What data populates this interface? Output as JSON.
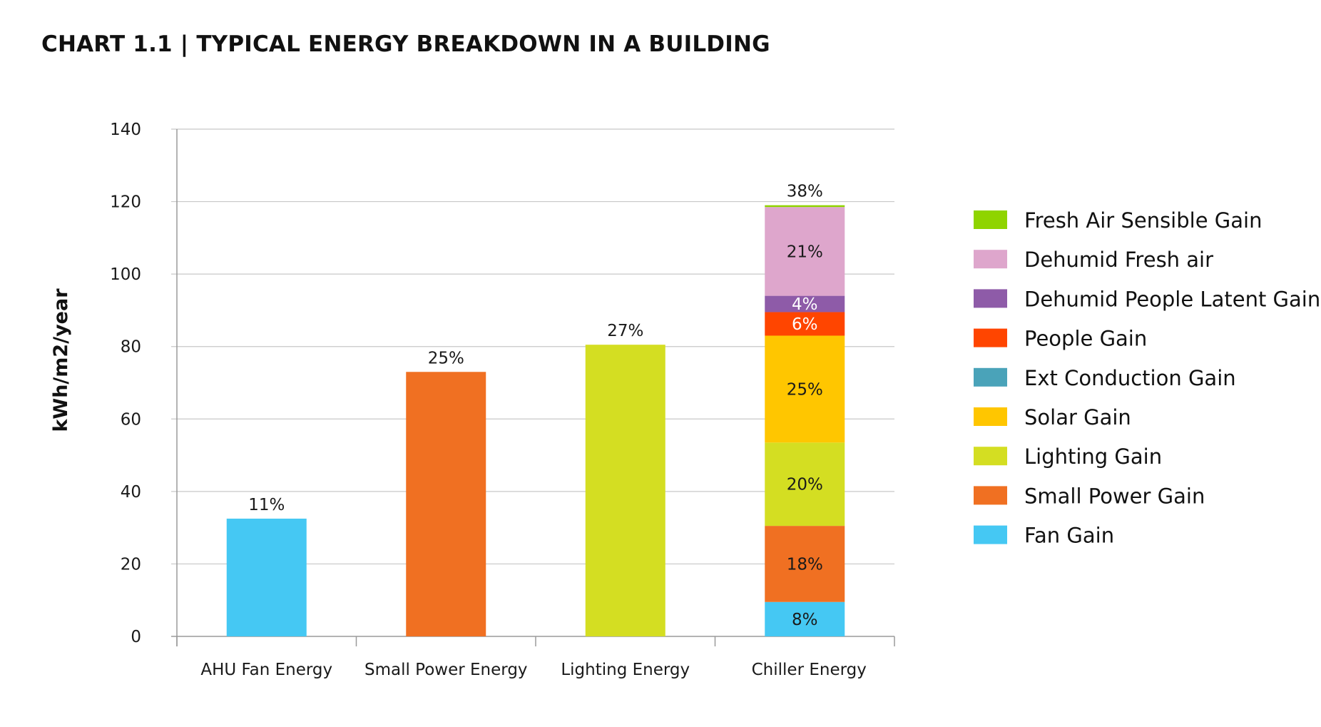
{
  "page": {
    "title": "CHART 1.1  |  TYPICAL ENERGY BREAKDOWN IN A BUILDING"
  },
  "chart_data": {
    "type": "bar",
    "stacked": true,
    "title": "CHART 1.1  |  TYPICAL ENERGY BREAKDOWN IN A BUILDING",
    "xlabel": "",
    "ylabel": "kWh/m2/year",
    "ylim": [
      0,
      140
    ],
    "yticks": [
      0,
      20,
      40,
      60,
      80,
      100,
      120,
      140
    ],
    "grid": true,
    "legend_position": "right",
    "categories": [
      "AHU Fan Energy",
      "Small Power Energy",
      "Lighting Energy",
      "Chiller Energy"
    ],
    "bars": [
      {
        "category": "AHU Fan Energy",
        "total_label": "11%",
        "segments": [
          {
            "series": "Fan Gain",
            "value": 32.5,
            "color": "#45c8f3"
          }
        ]
      },
      {
        "category": "Small Power Energy",
        "total_label": "25%",
        "segments": [
          {
            "series": "Small Power Gain",
            "value": 73,
            "color": "#f07022"
          }
        ]
      },
      {
        "category": "Lighting Energy",
        "total_label": "27%",
        "segments": [
          {
            "series": "Lighting Gain",
            "value": 80.5,
            "color": "#d4de22"
          }
        ]
      },
      {
        "category": "Chiller Energy",
        "total_label": "38%",
        "segments": [
          {
            "series": "Fan Gain",
            "value": 9.5,
            "label": "8%",
            "color": "#45c8f3"
          },
          {
            "series": "Small Power Gain",
            "value": 21,
            "label": "18%",
            "color": "#f07022"
          },
          {
            "series": "Lighting Gain",
            "value": 23,
            "label": "20%",
            "color": "#d4de22"
          },
          {
            "series": "Solar Gain",
            "value": 29.5,
            "label": "25%",
            "color": "#ffc600"
          },
          {
            "series": "Ext Conduction Gain",
            "value": 0,
            "color": "#4aa3b9"
          },
          {
            "series": "People Gain",
            "value": 6.5,
            "label": "6%",
            "color": "#ff4500",
            "label_color": "#ffffff"
          },
          {
            "series": "Dehumid People Latent Gain",
            "value": 4.5,
            "label": "4%",
            "color": "#8e5ba8",
            "label_color": "#ffffff"
          },
          {
            "series": "Dehumid Fresh air",
            "value": 24.5,
            "label": "21%",
            "color": "#dea6cc"
          },
          {
            "series": "Fresh Air Sensible Gain",
            "value": 0.5,
            "color": "#8fd400"
          }
        ]
      }
    ],
    "legend": [
      {
        "name": "Fresh Air Sensible Gain",
        "color": "#8fd400"
      },
      {
        "name": "Dehumid Fresh air",
        "color": "#dea6cc"
      },
      {
        "name": "Dehumid People Latent Gain",
        "color": "#8e5ba8"
      },
      {
        "name": "People Gain",
        "color": "#ff4500"
      },
      {
        "name": "Ext Conduction Gain",
        "color": "#4aa3b9"
      },
      {
        "name": "Solar Gain",
        "color": "#ffc600"
      },
      {
        "name": "Lighting Gain",
        "color": "#d4de22"
      },
      {
        "name": "Small Power Gain",
        "color": "#f07022"
      },
      {
        "name": "Fan Gain",
        "color": "#45c8f3"
      }
    ]
  }
}
